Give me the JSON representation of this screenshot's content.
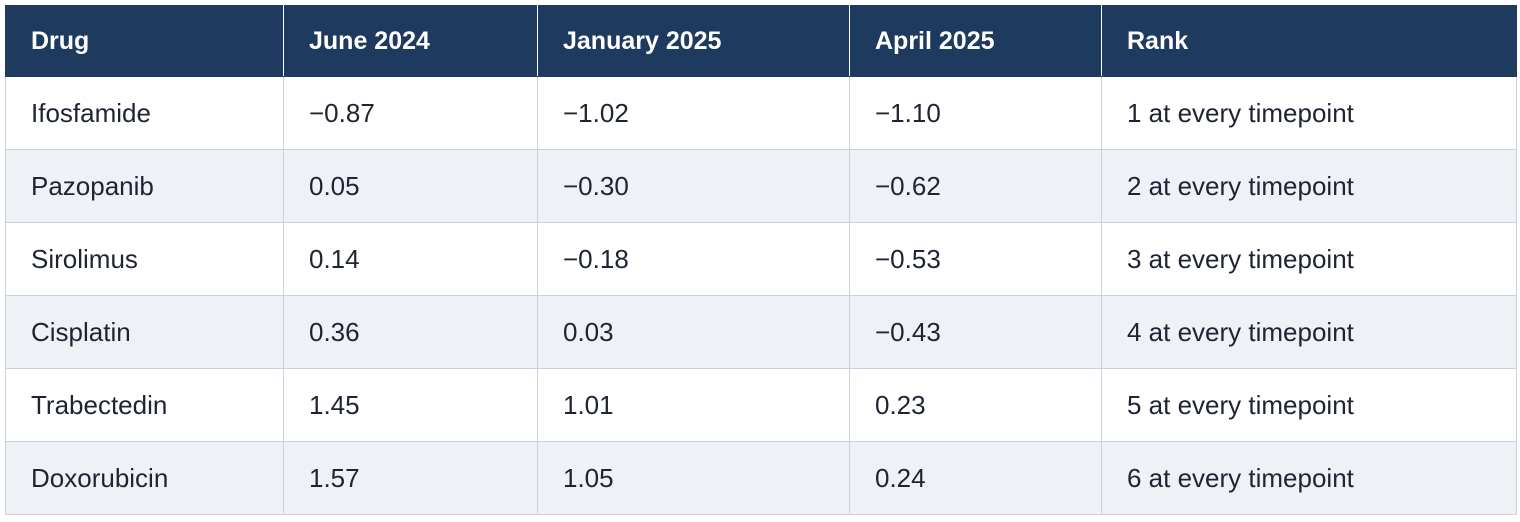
{
  "table": {
    "headers": [
      "Drug",
      "June 2024",
      "January 2025",
      "April 2025",
      "Rank"
    ],
    "rows": [
      [
        "Ifosfamide",
        "−0.87",
        "−1.02",
        "−1.10",
        "1 at every timepoint"
      ],
      [
        "Pazopanib",
        "0.05",
        "−0.30",
        "−0.62",
        "2 at every timepoint"
      ],
      [
        "Sirolimus",
        "0.14",
        "−0.18",
        "−0.53",
        "3 at every timepoint"
      ],
      [
        "Cisplatin",
        "0.36",
        "0.03",
        "−0.43",
        "4 at every timepoint"
      ],
      [
        "Trabectedin",
        "1.45",
        "1.01",
        "0.23",
        "5 at every timepoint"
      ],
      [
        "Doxorubicin",
        "1.57",
        "1.05",
        "0.24",
        "6 at every timepoint"
      ]
    ]
  },
  "colors": {
    "header_bg": "#1f3a5f",
    "header_text": "#ffffff",
    "row_alt_bg": "#eef1f6",
    "border": "#c9d3e0",
    "body_text": "#1e2433"
  }
}
